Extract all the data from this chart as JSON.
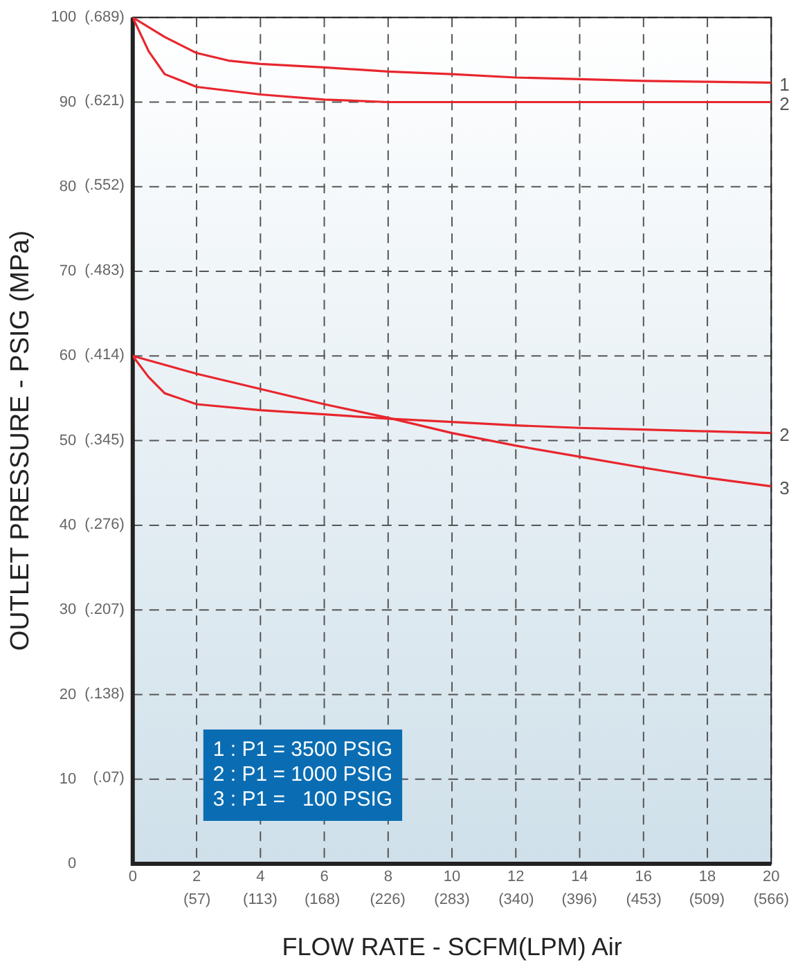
{
  "chart_data": {
    "type": "line",
    "xlabel": "FLOW RATE - SCFM(LPM) Air",
    "ylabel": "OUTLET PRESSURE - PSIG (MPa)",
    "xlim": [
      0,
      20
    ],
    "ylim": [
      0,
      100
    ],
    "xticks": [
      0,
      2,
      4,
      6,
      8,
      10,
      12,
      14,
      16,
      18,
      20
    ],
    "yticks": [
      0,
      10,
      20,
      30,
      40,
      50,
      60,
      70,
      80,
      90,
      100
    ],
    "x2lim": [
      0,
      566
    ],
    "x2ticks": [
      {
        "value": 57,
        "label": "(57)"
      },
      {
        "value": 113,
        "label": "(113)"
      },
      {
        "value": 168,
        "label": "(168)"
      },
      {
        "value": 226,
        "label": "(226)"
      },
      {
        "value": 283,
        "label": "(283)"
      },
      {
        "value": 340,
        "label": "(340)"
      },
      {
        "value": 396,
        "label": "(396)"
      },
      {
        "value": 453,
        "label": "(453)"
      },
      {
        "value": 509,
        "label": "(509)"
      },
      {
        "value": 566,
        "label": "(566)"
      }
    ],
    "y2lim": [
      0,
      0.689
    ],
    "y2ticks": [
      {
        "value": 0.07,
        "label": "(.07)"
      },
      {
        "value": 0.138,
        "label": "(.138)"
      },
      {
        "value": 0.207,
        "label": "(.207)"
      },
      {
        "value": 0.276,
        "label": "(.276)"
      },
      {
        "value": 0.345,
        "label": "(.345)"
      },
      {
        "value": 0.414,
        "label": "(.414)"
      },
      {
        "value": 0.483,
        "label": "(.483)"
      },
      {
        "value": 0.552,
        "label": "(.552)"
      },
      {
        "value": 0.621,
        "label": "(.621)"
      },
      {
        "value": 0.689,
        "label": "(.689)"
      }
    ],
    "grid": true,
    "line_style": "solid",
    "marker": "none",
    "series": [
      {
        "name": "1",
        "color": "#e8262d",
        "x": [
          0,
          1,
          2,
          3,
          4,
          6,
          8,
          10,
          12,
          14,
          16,
          18,
          20
        ],
        "values": [
          100,
          97.7,
          95.8,
          94.9,
          94.5,
          94.1,
          93.6,
          93.3,
          92.9,
          92.7,
          92.5,
          92.4,
          92.3
        ]
      },
      {
        "name": "2",
        "color": "#e8262d",
        "x": [
          0,
          0.5,
          1,
          2,
          4,
          6,
          8,
          10,
          12,
          14,
          16,
          18,
          20
        ],
        "values": [
          100,
          96,
          93.3,
          91.8,
          90.9,
          90.3,
          90,
          90,
          90,
          90,
          90,
          90,
          90
        ]
      },
      {
        "name": "2",
        "color": "#e8262d",
        "x": [
          0,
          0.5,
          1,
          2,
          4,
          6,
          8,
          10,
          12,
          14,
          16,
          18,
          20
        ],
        "values": [
          60,
          57.5,
          55.6,
          54.3,
          53.6,
          53.1,
          52.6,
          52.2,
          51.8,
          51.5,
          51.3,
          51.1,
          50.9
        ]
      },
      {
        "name": "3",
        "color": "#e8262d",
        "x": [
          0,
          2,
          4,
          6,
          8,
          10,
          12,
          14,
          16,
          18,
          20
        ],
        "values": [
          60,
          57.9,
          56.1,
          54.3,
          52.7,
          50.9,
          49.4,
          48.1,
          46.8,
          45.6,
          44.6
        ]
      }
    ],
    "annotations": [
      "1 : P1 = 3500 PSIG",
      "2 : P1 = 1000 PSIG",
      "3 : P1 =   100 PSIG"
    ]
  }
}
